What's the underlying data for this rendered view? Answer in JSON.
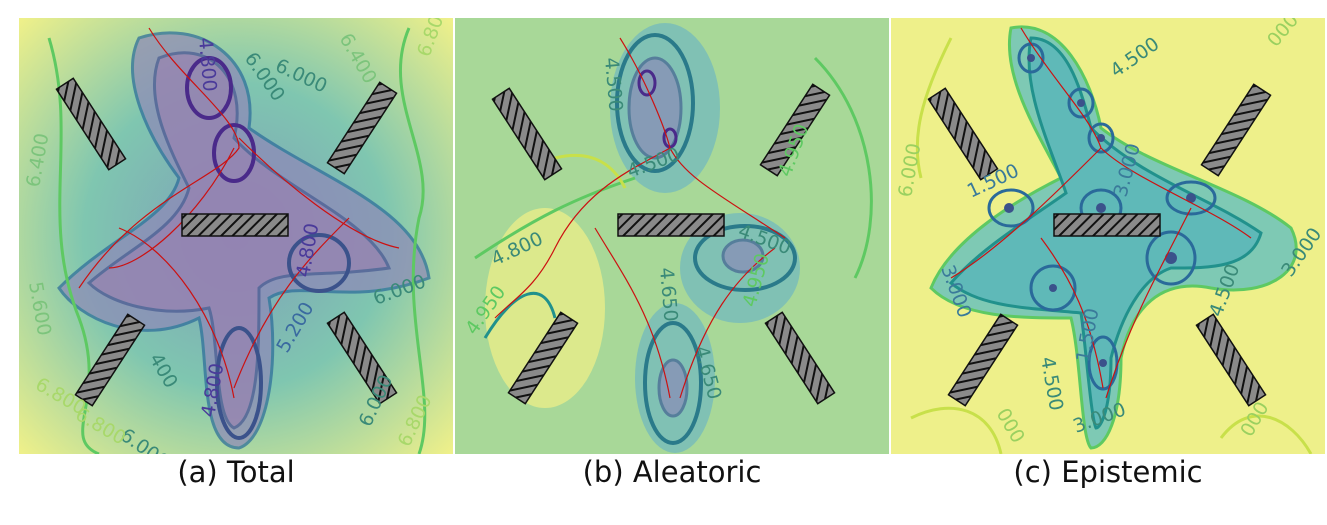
{
  "chart_data": [
    {
      "type": "heatmap",
      "subtype": "contour",
      "caption": "(a) Total",
      "colormap": "viridis",
      "contour_labels": [
        "6.000",
        "6.000",
        "6.400",
        "6.400",
        "6.800",
        "6.800",
        "6.800",
        "6.800",
        "5.600",
        "4.800",
        "4.800",
        "5.200",
        "6.000",
        "6.000",
        "6.000",
        "400"
      ]
    },
    {
      "type": "heatmap",
      "subtype": "contour",
      "caption": "(b) Aleatoric",
      "colormap": "viridis",
      "contour_labels": [
        "4.800",
        "4.950",
        "4.500",
        "4.500",
        "4.500",
        "4.650",
        "4.650",
        "4.950",
        "4.950"
      ]
    },
    {
      "type": "heatmap",
      "subtype": "contour",
      "caption": "(c) Epistemic",
      "colormap": "viridis",
      "contour_labels": [
        "4.500",
        "4.500",
        "4.500",
        "6.000",
        "3.000",
        "3.000",
        "3.000",
        "1.500",
        "1.500",
        "3.000",
        "000",
        "000",
        "000"
      ]
    }
  ],
  "colors": {
    "low": "#440154",
    "mid_low": "#3b528b",
    "mid": "#21918c",
    "mid_high": "#5ec962",
    "high": "#fde725",
    "trajectory": "#cc1111",
    "obstacle_fill": "#888888"
  }
}
